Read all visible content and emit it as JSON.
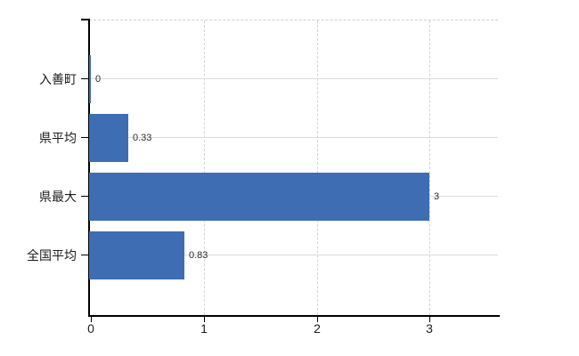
{
  "chart_data": {
    "type": "bar",
    "orientation": "horizontal",
    "title": "",
    "categories": [
      "入善町",
      "県平均",
      "県最大",
      "全国平均"
    ],
    "values": [
      0,
      0.33,
      3,
      0.83
    ],
    "value_labels": [
      "0",
      "0.33",
      "3",
      "0.83"
    ],
    "x_ticks": [
      "0",
      "1",
      "2",
      "3"
    ],
    "xlim": [
      0,
      3.62
    ],
    "grid": true,
    "legend_visible": false,
    "colors": {
      "bar": "#3e6db3",
      "horizontal_gridline": "#d9ddd9",
      "vertical_gridline": "#d4d4d4",
      "axis": "#000000",
      "tick_label": "#1c1c1c",
      "value_label": "#2b2b2b",
      "background": "#ffffff"
    }
  }
}
